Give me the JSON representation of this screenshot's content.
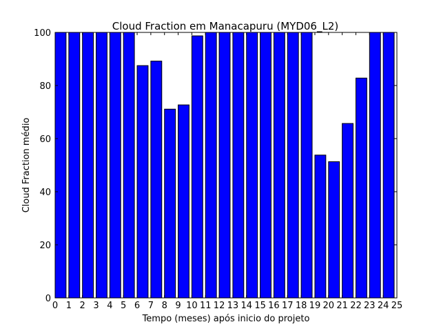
{
  "chart_data": {
    "type": "bar",
    "title": "Cloud Fraction em Manacapuru (MYD06_L2)",
    "xlabel": "Tempo (meses) após inicio do projeto",
    "ylabel": "Cloud Fraction médio",
    "categories": [
      0,
      1,
      2,
      3,
      4,
      5,
      6,
      7,
      8,
      9,
      10,
      11,
      12,
      13,
      14,
      15,
      16,
      17,
      18,
      19,
      20,
      21,
      22,
      23,
      24
    ],
    "values": [
      100,
      100,
      100,
      100,
      100,
      100,
      87.5,
      89.2,
      71.1,
      72.7,
      98.7,
      100,
      100,
      100,
      100,
      100,
      100,
      100,
      100,
      53.8,
      51.3,
      65.7,
      82.8,
      100,
      100
    ],
    "xticks": [
      "0",
      "1",
      "2",
      "3",
      "4",
      "5",
      "6",
      "7",
      "8",
      "9",
      "10",
      "11",
      "12",
      "13",
      "14",
      "15",
      "16",
      "17",
      "18",
      "19",
      "20",
      "21",
      "22",
      "23",
      "24",
      "25"
    ],
    "xlim": [
      0,
      25
    ],
    "yticks": [
      "0",
      "20",
      "40",
      "60",
      "80",
      "100"
    ],
    "ylim": [
      0,
      100
    ],
    "bar_color": "#0000ff",
    "grid": false,
    "legend": "none"
  }
}
